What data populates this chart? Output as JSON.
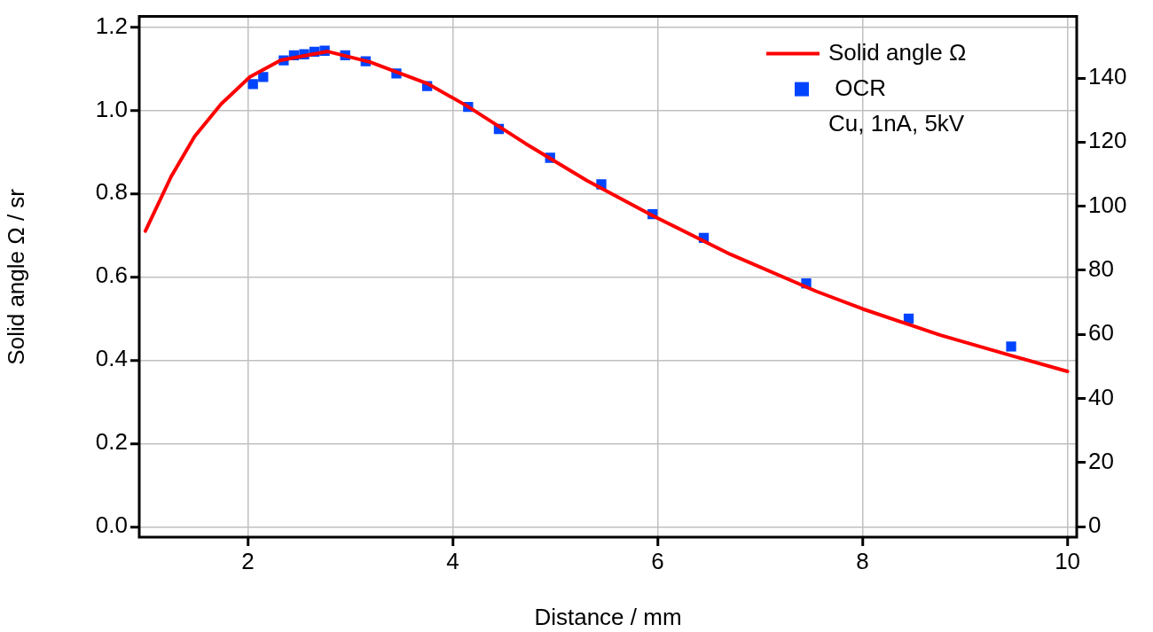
{
  "chart_data": {
    "type": "line",
    "xlabel": "Distance / mm",
    "ylabel": "Solid angle Ω / sr",
    "xlim": [
      0.94,
      10.09
    ],
    "xticks": [
      2,
      4,
      6,
      8,
      10
    ],
    "ylim": [
      -0.025,
      1.225
    ],
    "yticks": [
      {
        "value": 0,
        "label": "0.0"
      },
      0.2,
      0.4,
      0.6,
      0.8,
      {
        "value": 1,
        "label": "1.0"
      },
      1.2
    ],
    "y2lim": [
      -3.3,
      159.2
    ],
    "y2ticks": [
      0,
      20,
      40,
      60,
      80,
      100,
      120,
      140
    ],
    "grid": true,
    "legend": "top right",
    "annotations": [
      "Cu, 1nA, 5kV"
    ],
    "series": [
      {
        "name": "Solid angle Ω",
        "type": "line",
        "color": "#ff0000",
        "marker": "none",
        "line_style": "solid",
        "x": [
          1.0,
          1.25,
          1.48,
          1.74,
          2.02,
          2.32,
          2.78,
          3.19,
          3.76,
          4.14,
          4.71,
          5.31,
          5.95,
          6.71,
          7.55,
          8.0,
          8.76,
          9.45,
          10.0
        ],
        "values": [
          0.71,
          0.84,
          0.937,
          1.015,
          1.08,
          1.12,
          1.141,
          1.116,
          1.063,
          1.01,
          0.92,
          0.831,
          0.747,
          0.654,
          0.565,
          0.523,
          0.46,
          0.411,
          0.373
        ]
      },
      {
        "name": " OCR",
        "type": "scatter",
        "axis": "y2",
        "color": "#0044ff",
        "marker": "square",
        "x": [
          2.05,
          2.15,
          2.35,
          2.45,
          2.55,
          2.65,
          2.75,
          2.95,
          3.15,
          3.45,
          3.75,
          4.15,
          4.45,
          4.95,
          5.45,
          5.95,
          6.45,
          7.45,
          8.45,
          9.45
        ],
        "values": [
          138.1,
          140.3,
          145.5,
          147.1,
          147.4,
          148.2,
          148.5,
          147.1,
          145.2,
          141.4,
          137.5,
          131.0,
          124.1,
          115.1,
          106.8,
          97.5,
          90.1,
          75.9,
          64.9,
          56.2
        ]
      }
    ]
  }
}
